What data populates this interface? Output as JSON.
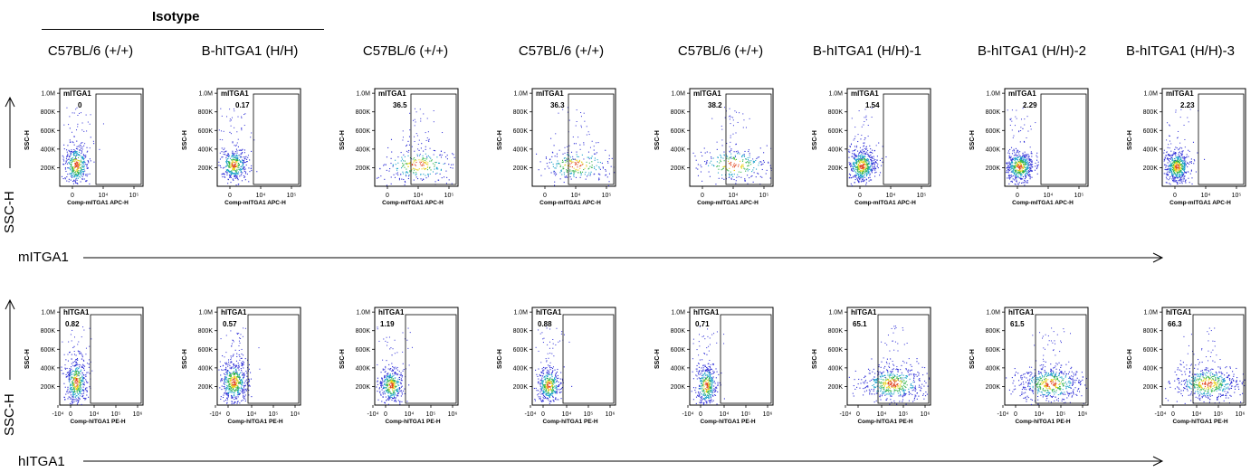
{
  "header": {
    "group_label": "Isotype",
    "columns": [
      "C57BL/6 (+/+)",
      "B-hITGA1 (H/H)",
      "C57BL/6 (+/+)",
      "C57BL/6 (+/+)",
      "C57BL/6 (+/+)",
      "B-hITGA1 (H/H)-1",
      "B-hITGA1 (H/H)-2",
      "B-hITGA1 (H/H)-3"
    ]
  },
  "rows": {
    "top": {
      "side_axis": "SSC-H",
      "bottom_axis": "mITGA1"
    },
    "bottom": {
      "side_axis": "SSC-H",
      "bottom_axis": "hITGA1"
    }
  },
  "chart_data": [
    {
      "type": "scatter",
      "title": "",
      "marker": "mITGA1",
      "xlabel": "Comp-mITGA1 APC-H",
      "ylabel": "SSC-H",
      "xticks": [
        "0",
        "10⁴",
        "10⁵"
      ],
      "yticks": [
        "200K",
        "400K",
        "600K",
        "800K",
        "1.0M"
      ],
      "ylim": [
        0,
        1050000
      ],
      "panels": [
        {
          "sample": "C57BL/6 (+/+)",
          "gate_percent": "0"
        },
        {
          "sample": "B-hITGA1 (H/H)",
          "gate_percent": "0.17"
        },
        {
          "sample": "C57BL/6 (+/+)",
          "gate_percent": "36.5"
        },
        {
          "sample": "C57BL/6 (+/+)",
          "gate_percent": "36.3"
        },
        {
          "sample": "C57BL/6 (+/+)",
          "gate_percent": "38.2"
        },
        {
          "sample": "B-hITGA1 (H/H)-1",
          "gate_percent": "1.54"
        },
        {
          "sample": "B-hITGA1 (H/H)-2",
          "gate_percent": "2.29"
        },
        {
          "sample": "B-hITGA1 (H/H)-3",
          "gate_percent": "2.23"
        }
      ]
    },
    {
      "type": "scatter",
      "title": "",
      "marker": "hITGA1",
      "xlabel": "Comp-hITGA1 PE-H",
      "ylabel": "SSC-H",
      "xticks": [
        "-10⁴",
        "0",
        "10⁴",
        "10⁵",
        "10⁶"
      ],
      "yticks": [
        "200K",
        "400K",
        "600K",
        "800K",
        "1.0M"
      ],
      "ylim": [
        0,
        1050000
      ],
      "panels": [
        {
          "sample": "C57BL/6 (+/+)",
          "gate_percent": "0.82"
        },
        {
          "sample": "B-hITGA1 (H/H)",
          "gate_percent": "0.57"
        },
        {
          "sample": "C57BL/6 (+/+)",
          "gate_percent": "1.19"
        },
        {
          "sample": "C57BL/6 (+/+)",
          "gate_percent": "0.88"
        },
        {
          "sample": "C57BL/6 (+/+)",
          "gate_percent": "0.71"
        },
        {
          "sample": "B-hITGA1 (H/H)-1",
          "gate_percent": "65.1"
        },
        {
          "sample": "B-hITGA1 (H/H)-2",
          "gate_percent": "61.5"
        },
        {
          "sample": "B-hITGA1 (H/H)-3",
          "gate_percent": "66.3"
        }
      ]
    }
  ],
  "colors": {
    "sparse": "#2b2bd6",
    "mid": "#18a0c8",
    "dense": "#2fb34a",
    "core": "#e8d21a",
    "hot": "#e0401a"
  }
}
